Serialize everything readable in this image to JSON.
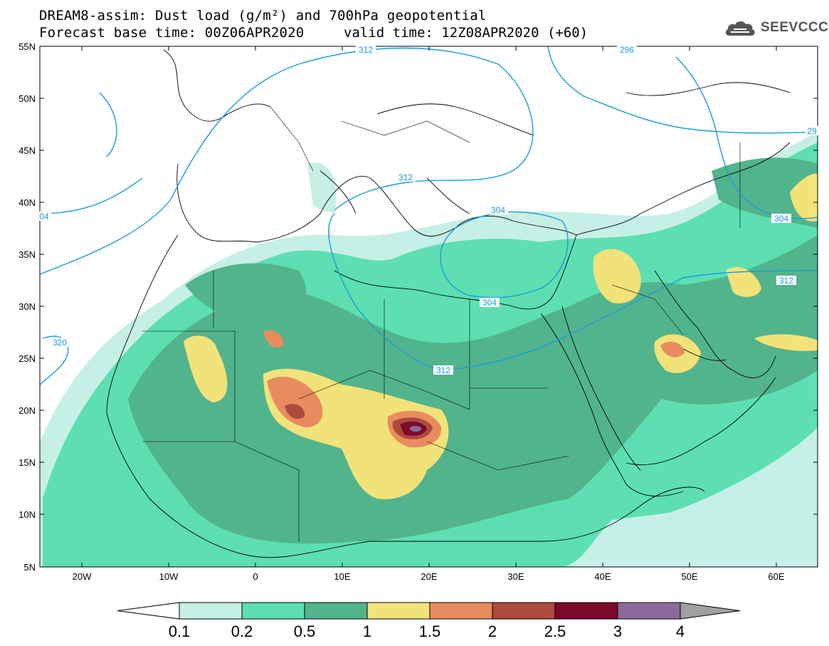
{
  "title": {
    "line1": "DREAM8-assim: Dust load (g/m²) and 700hPa geopotential",
    "line2_left": "Forecast base time: 00Z06APR2020",
    "line2_right": "valid time: 12Z08APR2020 (+60)"
  },
  "logo": {
    "text": "SEEVCCC",
    "icon": "cloud-logo-icon"
  },
  "map": {
    "lat_labels": [
      "55N",
      "50N",
      "45N",
      "40N",
      "35N",
      "30N",
      "25N",
      "20N",
      "15N",
      "10N",
      "5N"
    ],
    "lon_labels": [
      "20W",
      "10W",
      "0",
      "10E",
      "20E",
      "30E",
      "40E",
      "50E",
      "60E"
    ],
    "contour_labels": [
      "296",
      "29",
      "312",
      "304",
      "304",
      "312",
      "304",
      "312",
      "320",
      "312",
      "04"
    ],
    "contour_color": "#1a9be0"
  },
  "colorbar": {
    "labels": [
      "0.1",
      "0.2",
      "0.5",
      "1",
      "1.5",
      "2",
      "2.5",
      "3",
      "4"
    ],
    "colors": [
      "#c6f0e6",
      "#5ddfb2",
      "#52b48c",
      "#f2e27a",
      "#e88c5f",
      "#ac4a3e",
      "#7c0a2a",
      "#8a6a9c",
      "#a0a0a0"
    ],
    "units": "g/m²"
  }
}
